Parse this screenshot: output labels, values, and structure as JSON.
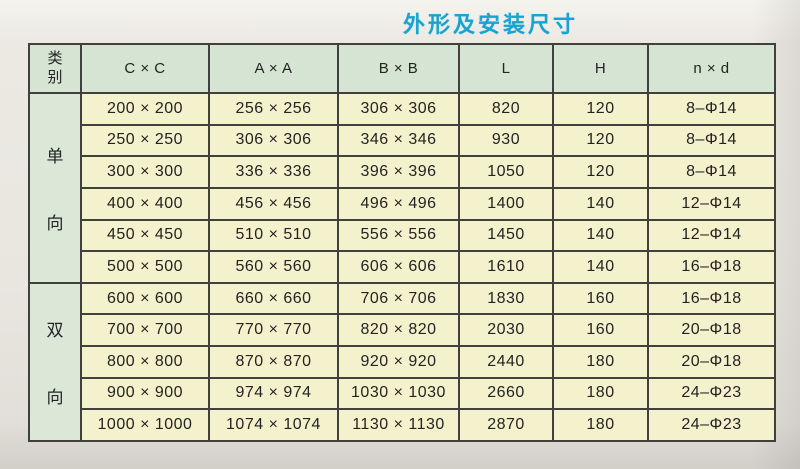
{
  "title": "外形及安装尺寸",
  "colors": {
    "title": "#17a4d3",
    "header_bg": "#d6e5d3",
    "category_bg": "#dbe8d8",
    "cell_bg": "#f4f2cc",
    "grid_line": "#41403c",
    "paper": "#e9e6e0",
    "text": "#232323"
  },
  "table": {
    "headers": [
      "类别",
      "C × C",
      "A × A",
      "B × B",
      "L",
      "H",
      "n × d"
    ],
    "groups": [
      {
        "label": "单向",
        "rows": [
          [
            "200 × 200",
            "256 × 256",
            "306 × 306",
            "820",
            "120",
            "8–Φ14"
          ],
          [
            "250 × 250",
            "306 × 306",
            "346 × 346",
            "930",
            "120",
            "8–Φ14"
          ],
          [
            "300 × 300",
            "336 × 336",
            "396 × 396",
            "1050",
            "120",
            "8–Φ14"
          ],
          [
            "400 × 400",
            "456 × 456",
            "496 × 496",
            "1400",
            "140",
            "12–Φ14"
          ],
          [
            "450 × 450",
            "510 × 510",
            "556 × 556",
            "1450",
            "140",
            "12–Φ14"
          ],
          [
            "500 × 500",
            "560 × 560",
            "606 × 606",
            "1610",
            "140",
            "16–Φ18"
          ]
        ]
      },
      {
        "label": "双向",
        "rows": [
          [
            "600 × 600",
            "660 × 660",
            "706 × 706",
            "1830",
            "160",
            "16–Φ18"
          ],
          [
            "700 × 700",
            "770 × 770",
            "820 × 820",
            "2030",
            "160",
            "20–Φ18"
          ],
          [
            "800 × 800",
            "870 × 870",
            "920 × 920",
            "2440",
            "180",
            "20–Φ18"
          ],
          [
            "900 × 900",
            "974 × 974",
            "1030 × 1030",
            "2660",
            "180",
            "24–Φ23"
          ],
          [
            "1000 × 1000",
            "1074 × 1074",
            "1130 × 1130",
            "2870",
            "180",
            "24–Φ23"
          ]
        ]
      }
    ]
  }
}
